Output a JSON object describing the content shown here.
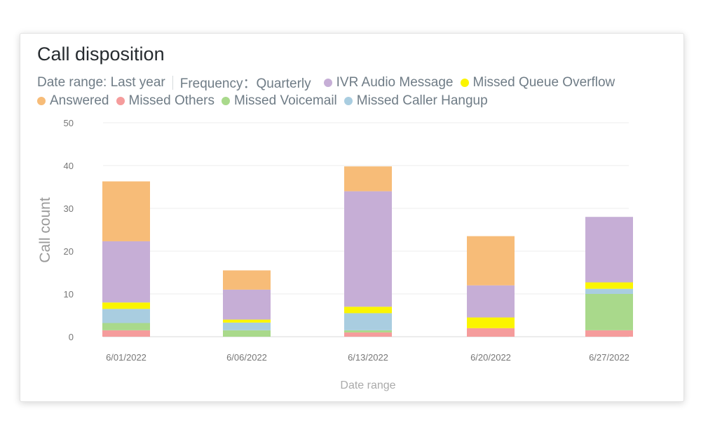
{
  "card": {
    "title": "Call disposition",
    "date_range_label": "Date range: Last year",
    "frequency_label": "Frequency：Quarterly"
  },
  "chart_data": {
    "type": "bar",
    "stacked": true,
    "title": "Call disposition",
    "xlabel": "Date range",
    "ylabel": "Call count",
    "ylim": [
      0,
      50
    ],
    "yticks": [
      0,
      10,
      20,
      30,
      40,
      50
    ],
    "categories": [
      "6/01/2022",
      "6/06/2022",
      "6/13/2022",
      "6/20/2022",
      "6/27/2022"
    ],
    "grid": true,
    "legend_placement": "top",
    "series": [
      {
        "name": "Missed Others",
        "color": "#f59c9c",
        "values": [
          1.5,
          0,
          1,
          2,
          1.5
        ]
      },
      {
        "name": "Missed Voicemail",
        "color": "#a9d98b",
        "values": [
          1.7,
          1.5,
          0.5,
          0,
          8.5
        ]
      },
      {
        "name": "Missed Caller Hangup",
        "color": "#a9cde0",
        "values": [
          3.3,
          1.8,
          4,
          0,
          1.2
        ]
      },
      {
        "name": "Missed Queue Overflow",
        "color": "#fbf500",
        "values": [
          1.5,
          0.7,
          1.5,
          2.5,
          1.5
        ]
      },
      {
        "name": "IVR Audio Message",
        "color": "#c6aed6",
        "values": [
          14.3,
          7,
          27,
          7.5,
          15.3
        ]
      },
      {
        "name": "Answered",
        "color": "#f7bc78",
        "values": [
          14,
          4.5,
          5.8,
          11.5,
          0
        ]
      }
    ]
  },
  "legend_rows": {
    "row1": [
      "IVR Audio Message",
      "Missed Queue Overflow"
    ],
    "row2": [
      "Answered",
      "Missed Others",
      "Missed Voicemail",
      "Missed Caller Hangup"
    ]
  }
}
